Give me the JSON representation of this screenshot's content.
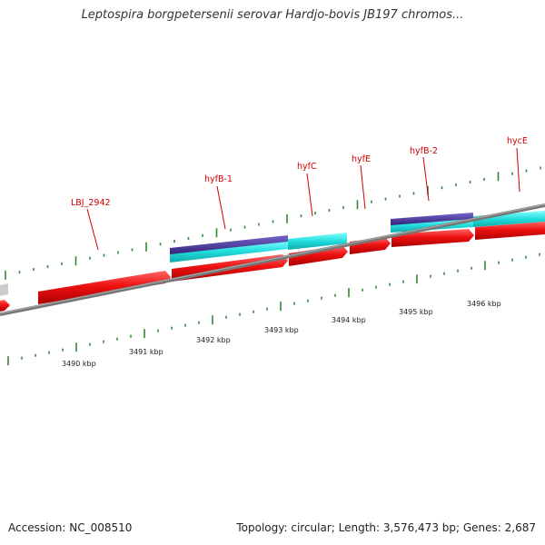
{
  "title": "Leptospira borgpetersenii serovar Hardjo-bovis JB197 chromos...",
  "footer": {
    "accession": "Accession: NC_008510",
    "summary": "Topology: circular; Length: 3,576,473 bp; Genes: 2,687"
  },
  "gene_labels": [
    "LBJ_2942",
    "hyfB-1",
    "hyfC",
    "hyfE",
    "hyfB-2",
    "hycE"
  ],
  "kbp_labels": [
    "3490 kbp",
    "3491 kbp",
    "3492 kbp",
    "3493 kbp",
    "3494 kbp",
    "3495 kbp",
    "3496 kbp"
  ],
  "colors": {
    "cds": "#ee1111",
    "orf": "#22dddd",
    "blast": "#443399",
    "tick": "#338833",
    "backbone": "#888888",
    "label": "#cc0000"
  }
}
